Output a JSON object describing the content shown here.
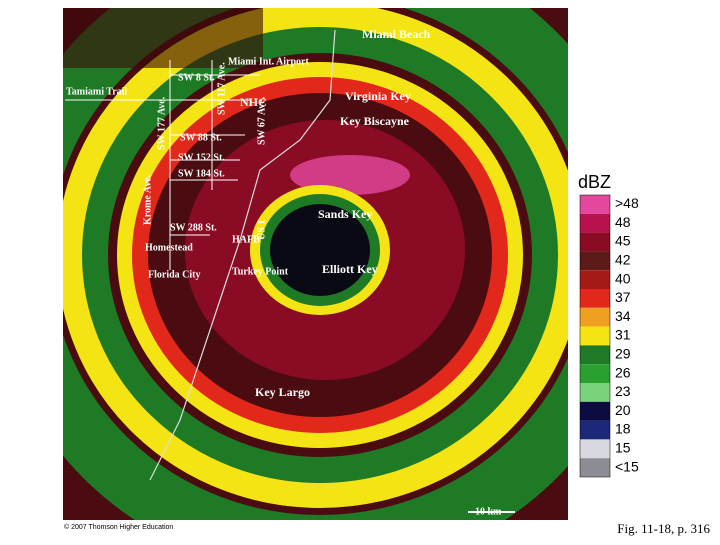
{
  "map": {
    "labels": [
      "Miami Beach",
      "Miami Int. Airport",
      "SW 8 St.",
      "Tamiami Trail",
      "SW 117 Ave.",
      "SW 177 Ave.",
      "NHC",
      "Virginia Key",
      "Key Biscayne",
      "SW 88 St.",
      "SW 152 St.",
      "SW 184 St.",
      "SW 67 Ave.",
      "Krome Ave.",
      "US 1",
      "SW 288 St.",
      "Homestead",
      "HAFB",
      "Florida City",
      "Turkey Point",
      "Sands Key",
      "Elliott Key",
      "Key Largo"
    ],
    "copyright": "© 2007 Thomson Higher Education",
    "scale": "10 km"
  },
  "legend": {
    "title": "dBZ",
    "items": [
      {
        "label": ">48",
        "color": "#e4479e"
      },
      {
        "label": "48",
        "color": "#b8124e"
      },
      {
        "label": "45",
        "color": "#8a0c24"
      },
      {
        "label": "42",
        "color": "#5c1a18"
      },
      {
        "label": "40",
        "color": "#a41a16"
      },
      {
        "label": "37",
        "color": "#e2281a"
      },
      {
        "label": "34",
        "color": "#f0a020"
      },
      {
        "label": "31",
        "color": "#f4e414"
      },
      {
        "label": "29",
        "color": "#1e7a24"
      },
      {
        "label": "26",
        "color": "#2aa030"
      },
      {
        "label": "23",
        "color": "#7ad27a"
      },
      {
        "label": "20",
        "color": "#0c0c40"
      },
      {
        "label": "18",
        "color": "#1c2878"
      },
      {
        "label": "15",
        "color": "#d8d8e0"
      },
      {
        "label": "<15",
        "color": "#8c8c94"
      }
    ]
  },
  "caption": "Fig. 11-18, p. 316"
}
